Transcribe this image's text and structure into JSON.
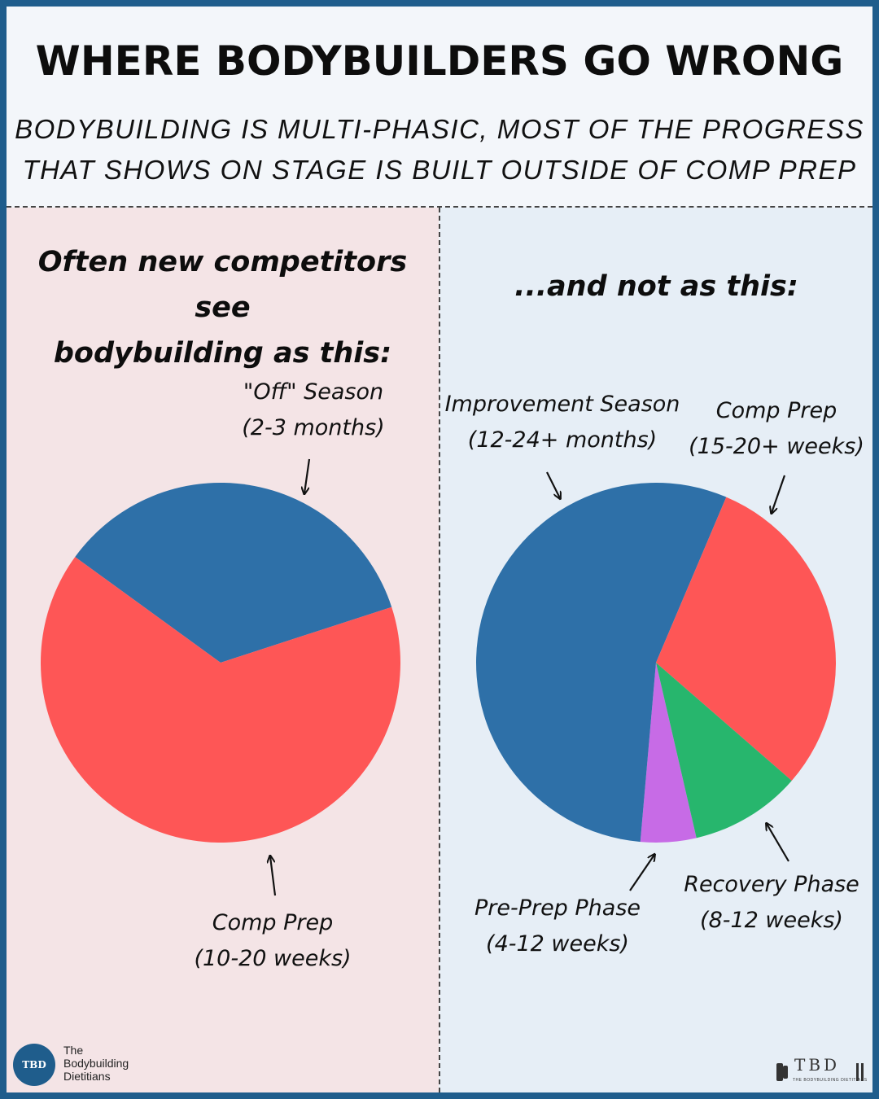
{
  "header": {
    "title": "WHERE BODYBUILDERS GO WRONG",
    "subtitle_line1": "BODYBUILDING IS MULTI-PHASIC, MOST OF THE PROGRESS",
    "subtitle_line2": "THAT SHOWS ON STAGE IS BUILT OUTSIDE OF COMP PREP"
  },
  "left_panel": {
    "heading_line1": "Often new competitors see",
    "heading_line2": "bodybuilding as this:",
    "background": "#f4e4e6"
  },
  "right_panel": {
    "heading": "...and not as this:",
    "background": "#e6eef6"
  },
  "chart_data": [
    {
      "type": "pie",
      "slices": [
        {
          "label_line1": "\"Off\" Season",
          "label_line2": "(2-3 months)",
          "value": 35,
          "color": "#2e70a8"
        },
        {
          "label_line1": "Comp Prep",
          "label_line2": "(10-20 weeks)",
          "value": 65,
          "color": "#fe5656"
        }
      ]
    },
    {
      "type": "pie",
      "slices": [
        {
          "label_line1": "Improvement Season",
          "label_line2": "(12-24+ months)",
          "value": 55,
          "color": "#2e70a8"
        },
        {
          "label_line1": "Comp Prep",
          "label_line2": "(15-20+ weeks)",
          "value": 30,
          "color": "#fe5656"
        },
        {
          "label_line1": "Recovery Phase",
          "label_line2": "(8-12 weeks)",
          "value": 10,
          "color": "#27b66d"
        },
        {
          "label_line1": "Pre-Prep Phase",
          "label_line2": "(4-12 weeks)",
          "value": 5,
          "color": "#c76be6"
        }
      ]
    }
  ],
  "footer": {
    "logo_left_mark": "TBD",
    "logo_left_line1": "The",
    "logo_left_line2": "Bodybuilding",
    "logo_left_line3": "Dietitians",
    "logo_right_mark": "TBD",
    "logo_right_sub": "THE BODYBUILDING DIETITIANS"
  }
}
